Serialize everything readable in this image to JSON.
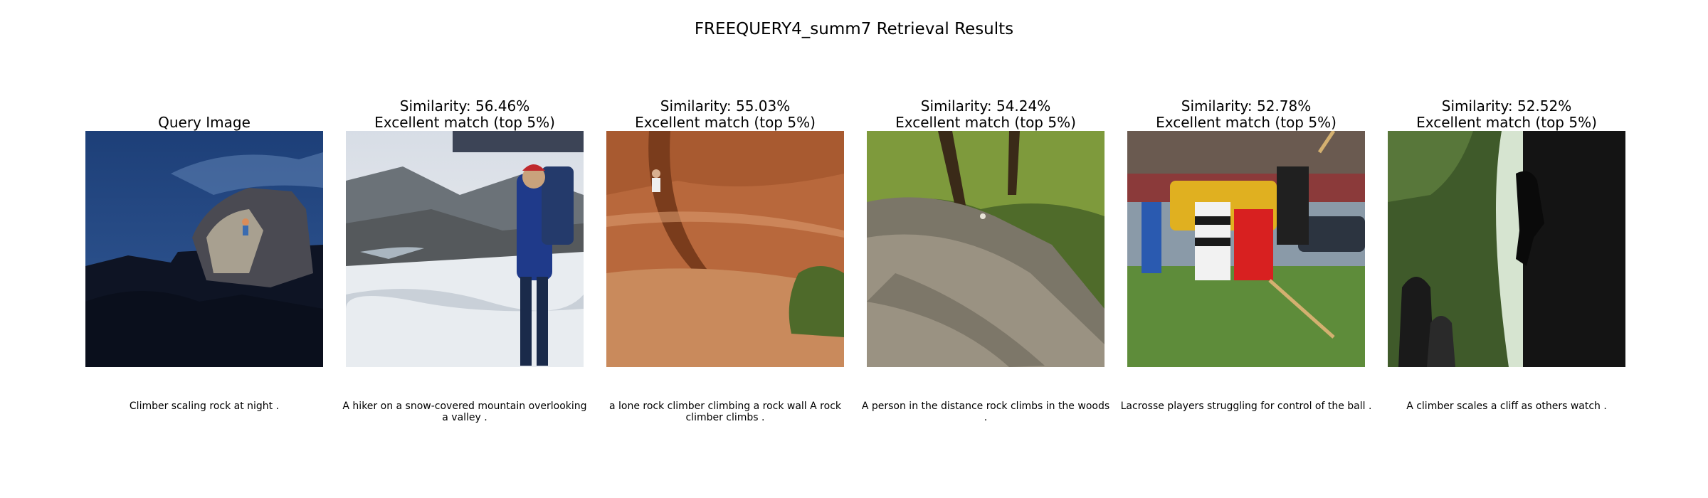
{
  "figure": {
    "title": "FREEQUERY4_summ7 Retrieval Results"
  },
  "panels": [
    {
      "line1": "Query Image",
      "line2": "",
      "caption": "Climber scaling rock at night .",
      "image": "night-boulder-climber"
    },
    {
      "line1": "Similarity: 56.46%",
      "line2": "Excellent match (top 5%)",
      "caption": "A hiker on a snow-covered mountain overlooking a valley .",
      "image": "snowy-mountain-hiker"
    },
    {
      "line1": "Similarity: 55.03%",
      "line2": "Excellent match (top 5%)",
      "caption": "a lone rock climber climbing a rock wall A rock climber climbs .",
      "image": "red-rock-climber"
    },
    {
      "line1": "Similarity: 54.24%",
      "line2": "Excellent match (top 5%)",
      "caption": "A person in the distance rock climbs in the woods .",
      "image": "forest-boulder"
    },
    {
      "line1": "Similarity: 52.78%",
      "line2": "Excellent match (top 5%)",
      "caption": "Lacrosse players struggling for control of the ball .",
      "image": "field-game-players"
    },
    {
      "line1": "Similarity: 52.52%",
      "line2": "Excellent match (top 5%)",
      "caption": "A climber scales a cliff as others watch .",
      "image": "silhouette-cliff-climber"
    }
  ]
}
